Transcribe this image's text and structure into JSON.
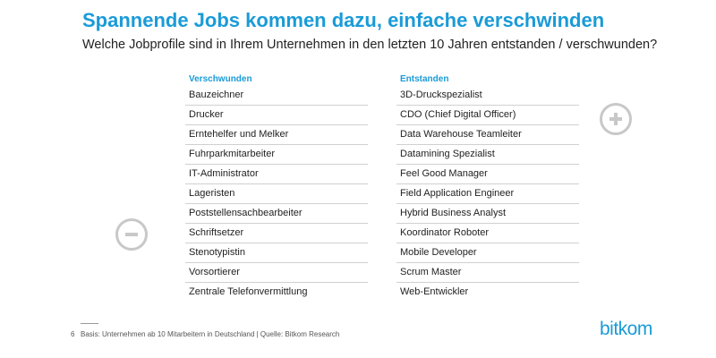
{
  "header": {
    "title": "Spannende Jobs kommen dazu, einfache verschwinden",
    "subtitle": "Welche Jobprofile sind in Ihrem Unternehmen in den letzten 10 Jahren entstanden / verschwunden?"
  },
  "columns": {
    "left": {
      "heading": "Verschwunden",
      "items": [
        "Bauzeichner",
        "Drucker",
        "Erntehelfer und Melker",
        "Fuhrparkmitarbeiter",
        "IT-Administrator",
        "Lageristen",
        "Poststellensachbearbeiter",
        "Schriftsetzer",
        "Stenotypistin",
        "Vorsortierer",
        "Zentrale Telefonvermittlung"
      ]
    },
    "right": {
      "heading": "Entstanden",
      "items": [
        "3D-Druckspezialist",
        "CDO (Chief Digital Officer)",
        "Data Warehouse Teamleiter",
        "Datamining Spezialist",
        "Feel Good Manager",
        "Field Application Engineer",
        "Hybrid Business Analyst",
        "Koordinator Roboter",
        "Mobile Developer",
        "Scrum Master",
        "Web-Entwickler"
      ]
    }
  },
  "icons": {
    "left": "minus-circle-icon",
    "right": "plus-circle-icon"
  },
  "footer": {
    "page_number": "6",
    "source": "Basis: Unternehmen ab 10 Mitarbeitern in Deutschland | Quelle: Bitkom Research"
  },
  "logo": {
    "text": "bitkom",
    "color": "#1a9bd7"
  },
  "colors": {
    "accent": "#1a9bd7",
    "icon_gray": "#c8c8c8",
    "rule": "#d0d0d0"
  }
}
